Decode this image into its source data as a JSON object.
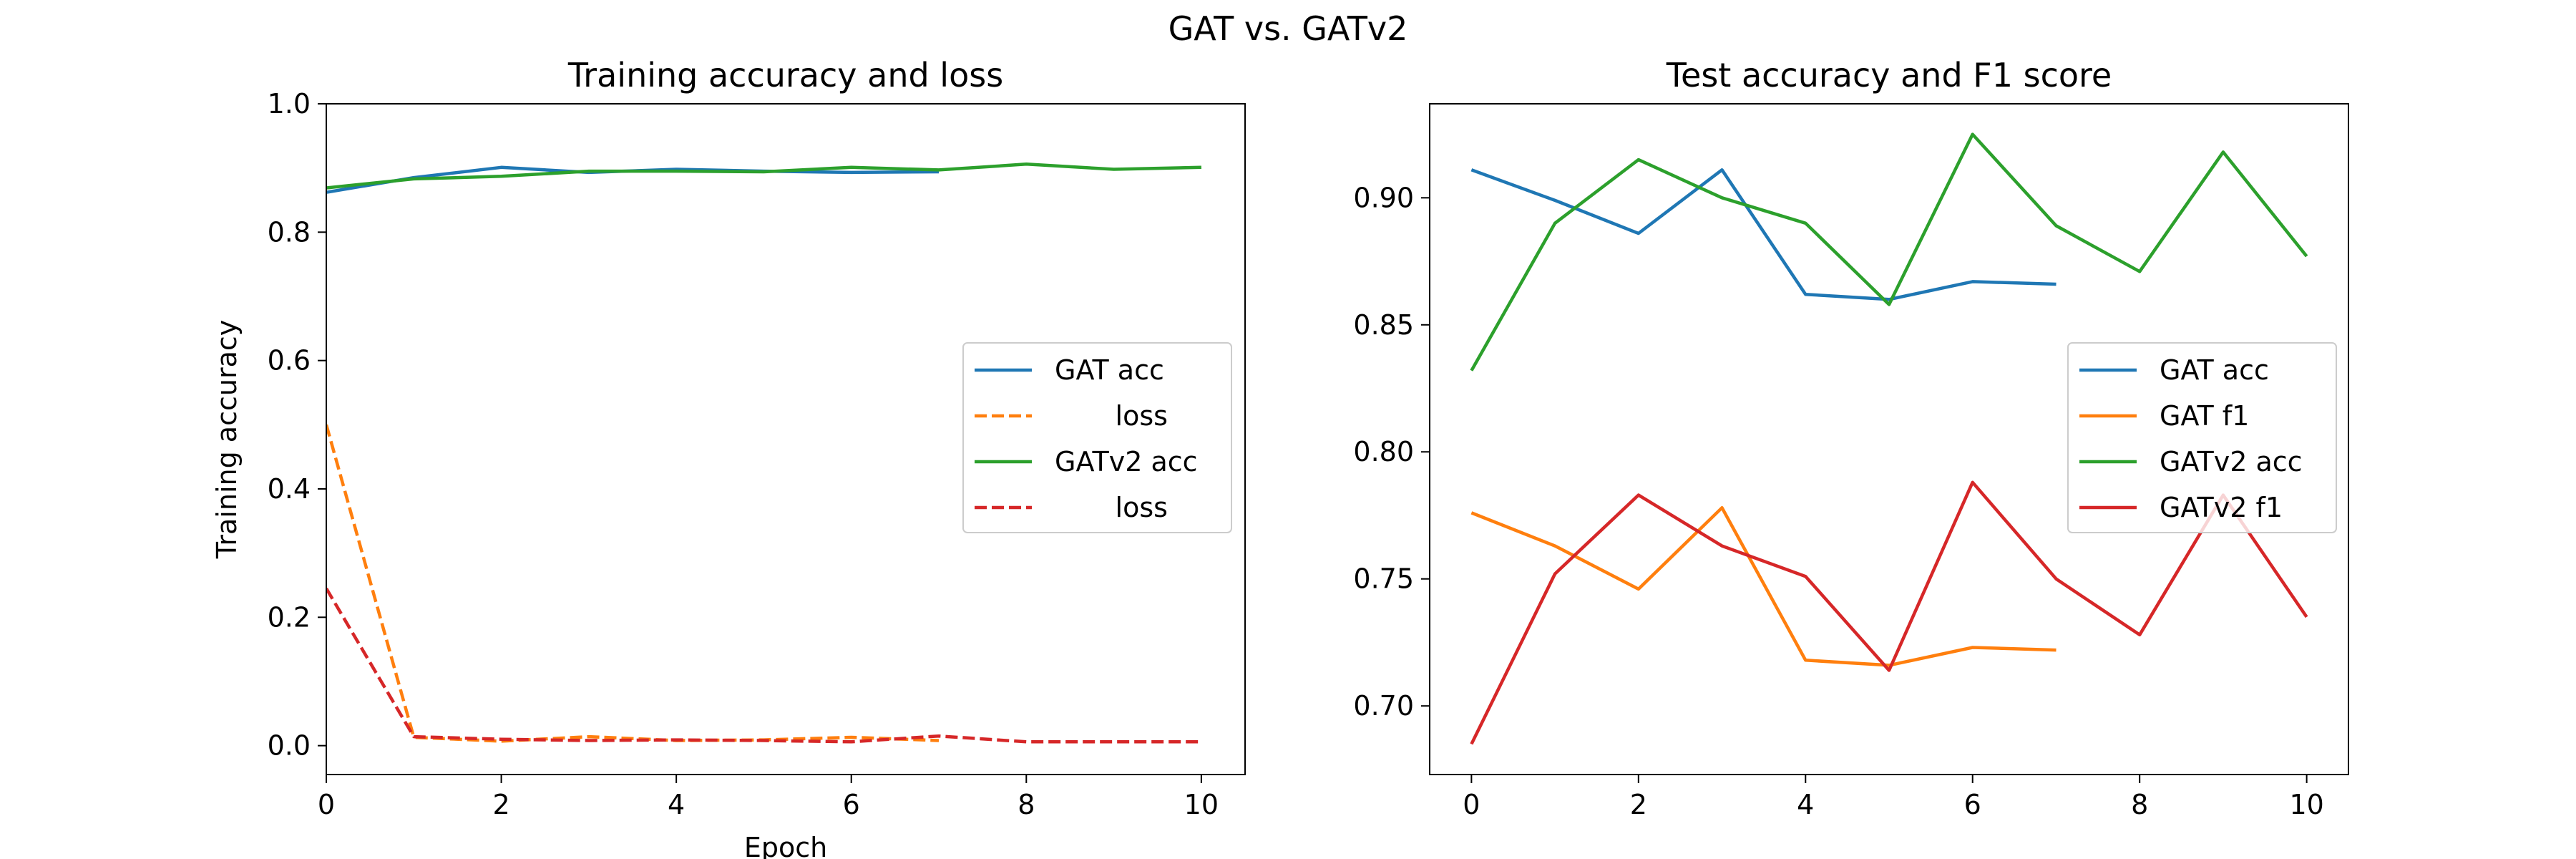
{
  "figure": {
    "suptitle": "GAT vs. GATv2"
  },
  "chart_data": [
    {
      "type": "line",
      "title": "Training accuracy and loss",
      "xlabel": "Epoch",
      "ylabel": "Training accuracy",
      "xlim": [
        0,
        10.5
      ],
      "ylim": [
        -0.045,
        1.0
      ],
      "xticks": [
        0,
        2,
        4,
        6,
        8,
        10
      ],
      "yticks": [
        0.0,
        0.2,
        0.4,
        0.6,
        0.8,
        1.0
      ],
      "ytick_format": 1,
      "grid": false,
      "legend_position": "center-right",
      "series": [
        {
          "name": "GAT acc",
          "color": "#1f77b4",
          "dash": false,
          "x": [
            0,
            1,
            2,
            3,
            4,
            5,
            6,
            7
          ],
          "y": [
            0.862,
            0.885,
            0.901,
            0.893,
            0.898,
            0.895,
            0.893,
            0.894
          ]
        },
        {
          "name": "       loss",
          "color": "#ff7f0e",
          "dash": true,
          "x": [
            0,
            1,
            2,
            3,
            4,
            5,
            6,
            7
          ],
          "y": [
            0.5,
            0.013,
            0.007,
            0.014,
            0.008,
            0.009,
            0.013,
            0.008
          ]
        },
        {
          "name": "GATv2 acc",
          "color": "#2ca02c",
          "dash": false,
          "x": [
            0,
            1,
            2,
            3,
            4,
            5,
            6,
            7,
            8,
            9,
            10
          ],
          "y": [
            0.869,
            0.883,
            0.887,
            0.895,
            0.895,
            0.894,
            0.901,
            0.897,
            0.906,
            0.898,
            0.901
          ]
        },
        {
          "name": "       loss",
          "color": "#d62728",
          "dash": true,
          "x": [
            0,
            1,
            2,
            3,
            4,
            5,
            6,
            7,
            8,
            9,
            10
          ],
          "y": [
            0.245,
            0.014,
            0.01,
            0.008,
            0.009,
            0.008,
            0.006,
            0.015,
            0.006,
            0.006,
            0.006
          ]
        }
      ]
    },
    {
      "type": "line",
      "title": "Test accuracy and F1 score",
      "xlabel": "",
      "ylabel": "",
      "xlim": [
        -0.5,
        10.5
      ],
      "ylim": [
        0.673,
        0.937
      ],
      "xticks": [
        0,
        2,
        4,
        6,
        8,
        10
      ],
      "yticks": [
        0.7,
        0.75,
        0.8,
        0.85,
        0.9
      ],
      "ytick_format": 2,
      "grid": false,
      "legend_position": "center-right",
      "series": [
        {
          "name": "GAT acc",
          "color": "#1f77b4",
          "dash": false,
          "x": [
            0,
            1,
            2,
            3,
            4,
            5,
            6,
            7
          ],
          "y": [
            0.911,
            0.899,
            0.886,
            0.911,
            0.862,
            0.86,
            0.867,
            0.866
          ]
        },
        {
          "name": "GAT f1",
          "color": "#ff7f0e",
          "dash": false,
          "x": [
            0,
            1,
            2,
            3,
            4,
            5,
            6,
            7
          ],
          "y": [
            0.776,
            0.763,
            0.746,
            0.778,
            0.718,
            0.716,
            0.723,
            0.722
          ]
        },
        {
          "name": "GATv2 acc",
          "color": "#2ca02c",
          "dash": false,
          "x": [
            0,
            1,
            2,
            3,
            4,
            5,
            6,
            7,
            8,
            9,
            10
          ],
          "y": [
            0.832,
            0.89,
            0.915,
            0.9,
            0.89,
            0.858,
            0.925,
            0.889,
            0.871,
            0.918,
            0.877
          ]
        },
        {
          "name": "GATv2 f1",
          "color": "#d62728",
          "dash": false,
          "x": [
            0,
            1,
            2,
            3,
            4,
            5,
            6,
            7,
            8,
            9,
            10
          ],
          "y": [
            0.685,
            0.752,
            0.783,
            0.763,
            0.751,
            0.714,
            0.788,
            0.75,
            0.728,
            0.783,
            0.735
          ]
        }
      ]
    }
  ]
}
